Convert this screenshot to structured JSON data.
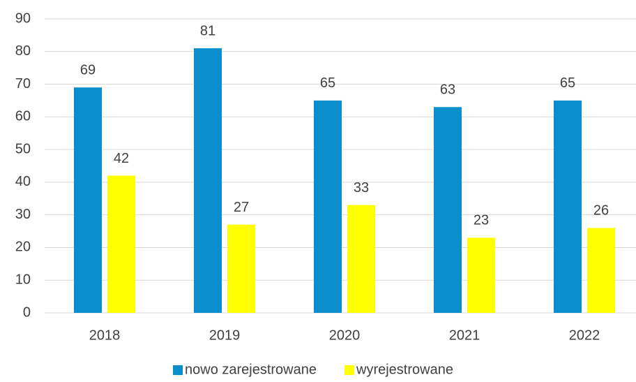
{
  "chart_data": {
    "type": "bar",
    "categories": [
      "2018",
      "2019",
      "2020",
      "2021",
      "2022"
    ],
    "series": [
      {
        "name": "nowo zarejestrowane",
        "color": "#0a8fcc",
        "values": [
          69,
          81,
          65,
          63,
          65
        ]
      },
      {
        "name": "wyrejestrowane",
        "color": "#ffff00",
        "values": [
          42,
          27,
          33,
          23,
          26
        ]
      }
    ],
    "ylim": [
      0,
      90
    ],
    "yticks": [
      0,
      10,
      20,
      30,
      40,
      50,
      60,
      70,
      80,
      90
    ],
    "grid": true,
    "legend": "bottom"
  }
}
